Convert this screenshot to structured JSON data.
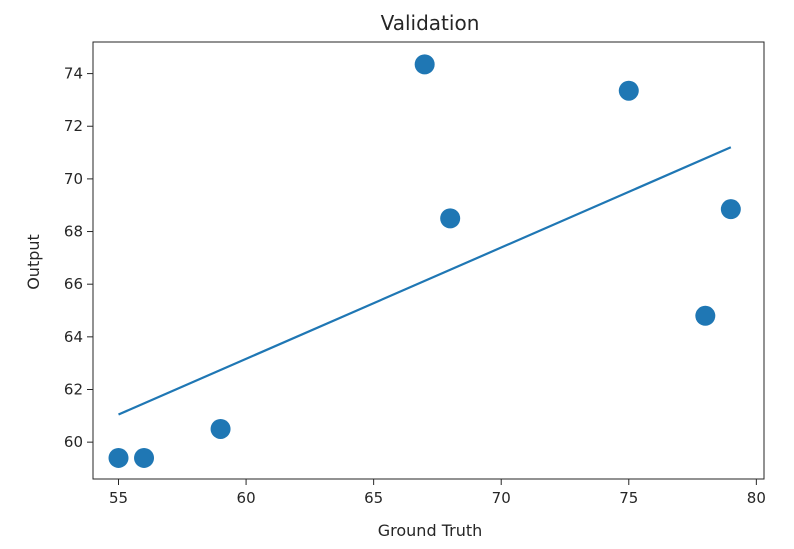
{
  "chart_data": {
    "type": "scatter",
    "title": "Validation",
    "xlabel": "Ground Truth",
    "ylabel": "Output",
    "xlim": [
      54.0,
      80.3
    ],
    "ylim": [
      58.6,
      75.2
    ],
    "xticks": [
      55,
      60,
      65,
      70,
      75,
      80
    ],
    "yticks": [
      60,
      62,
      64,
      66,
      68,
      70,
      72,
      74
    ],
    "grid": false,
    "point_color": "#1f77b4",
    "line_color": "#1f77b4",
    "points": [
      {
        "x": 55,
        "y": 59.4
      },
      {
        "x": 56,
        "y": 59.4
      },
      {
        "x": 59,
        "y": 60.5
      },
      {
        "x": 67,
        "y": 74.35
      },
      {
        "x": 68,
        "y": 68.5
      },
      {
        "x": 75,
        "y": 73.35
      },
      {
        "x": 78,
        "y": 64.8
      },
      {
        "x": 79,
        "y": 68.85
      }
    ],
    "fit_line": {
      "x": [
        55,
        79
      ],
      "y": [
        61.05,
        71.2
      ]
    }
  }
}
